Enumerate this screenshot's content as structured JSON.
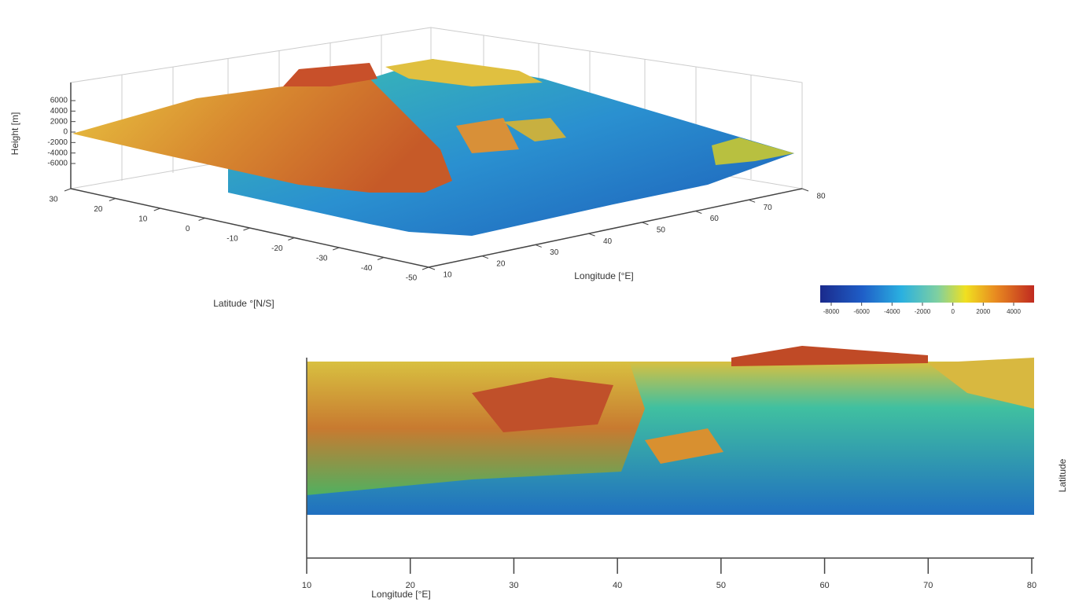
{
  "top_plot": {
    "z_label": "Height [m]",
    "z_ticks": [
      6000,
      4000,
      2000,
      0,
      -2000,
      -4000,
      -6000
    ],
    "lat_label": "Latitude °[N/S]",
    "lat_ticks": [
      30,
      20,
      10,
      0,
      -10,
      -20,
      -30,
      -40,
      -50
    ],
    "lon_label": "Longitude [°E]",
    "lon_ticks": [
      10,
      20,
      30,
      40,
      50,
      60,
      70,
      80
    ]
  },
  "colorbar": {
    "ticks": [
      -8000,
      -6000,
      -4000,
      -2000,
      0,
      2000,
      4000
    ]
  },
  "bottom_plot": {
    "x_label": "Longitude [°E]",
    "x_ticks": [
      10,
      20,
      30,
      40,
      50,
      60,
      70,
      80
    ],
    "y_label": "Latitude"
  }
}
